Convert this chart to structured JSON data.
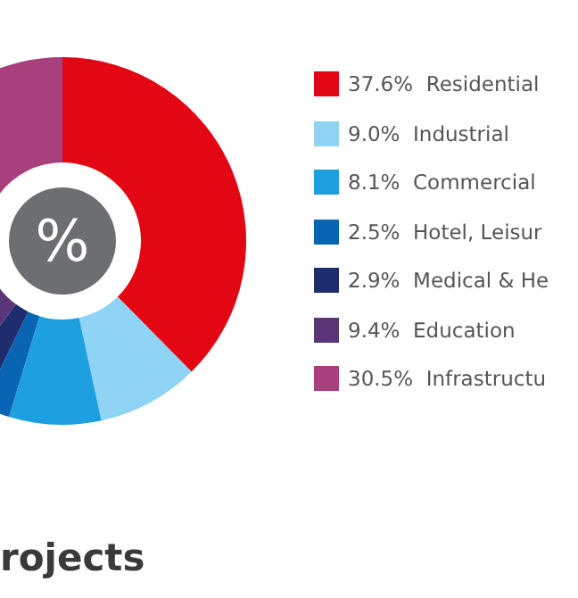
{
  "chart_data": {
    "type": "donut",
    "title": "rojects",
    "categories": [
      "Residential",
      "Industrial",
      "Commercial",
      "Hotel, Leisur",
      "Medical & He",
      "Education",
      "Infrastructu"
    ],
    "values": [
      37.6,
      9.0,
      8.1,
      2.5,
      2.9,
      9.4,
      30.5
    ],
    "value_labels": [
      "37.6%",
      "9.0%",
      "8.1%",
      "2.5%",
      "2.9%",
      "9.4%",
      "30.5%"
    ],
    "colors": [
      "#e30613",
      "#8fd3f5",
      "#1ea0e0",
      "#0a64b4",
      "#1e2d6e",
      "#5a3577",
      "#a8407e"
    ],
    "annotations": [
      "%"
    ],
    "legend": "right"
  }
}
